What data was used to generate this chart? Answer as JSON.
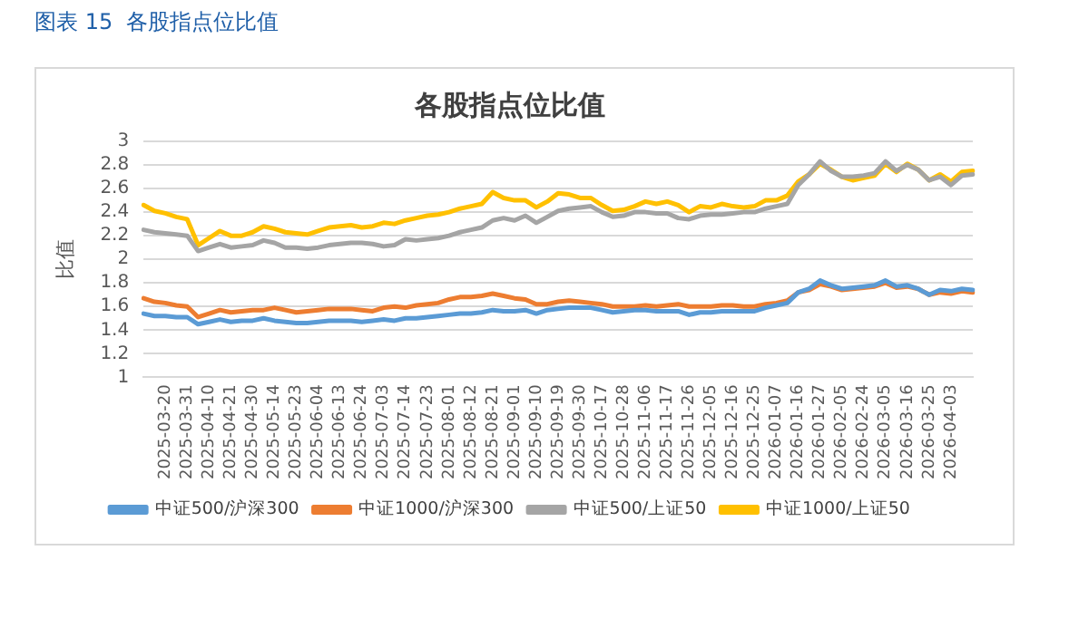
{
  "chart_data": {
    "type": "line",
    "subtitle": "图表 15  各股指点位比值",
    "title": "各股指点位比值",
    "ylabel": "比值",
    "categories": [
      null,
      null,
      "2025-03-20",
      null,
      "2025-03-31",
      null,
      "2025-04-10",
      null,
      "2025-04-21",
      null,
      "2025-04-30",
      null,
      "2025-05-14",
      null,
      "2025-05-23",
      null,
      "2025-06-04",
      null,
      "2025-06-13",
      null,
      "2025-06-24",
      null,
      "2025-07-03",
      null,
      "2025-07-14",
      null,
      "2025-07-23",
      null,
      "2025-08-01",
      null,
      "2025-08-12",
      null,
      "2025-08-21",
      null,
      "2025-09-01",
      null,
      "2025-09-10",
      null,
      "2025-09-19",
      null,
      "2025-09-30",
      null,
      "2025-10-17",
      null,
      "2025-10-28",
      null,
      "2025-11-06",
      null,
      "2025-11-17",
      null,
      "2025-11-26",
      null,
      "2025-12-05",
      null,
      "2025-12-16",
      null,
      "2025-12-25",
      null,
      "2026-01-07",
      null,
      "2026-01-16",
      null,
      "2026-01-27",
      null,
      "2026-02-05",
      null,
      "2026-02-24",
      null,
      "2026-03-05",
      null,
      "2026-03-16",
      null,
      "2026-03-25",
      null,
      "2026-04-03",
      null,
      null
    ],
    "series": [
      {
        "name": "中证500/沪深300",
        "color": "#5b9bd5",
        "values": [
          1.54,
          1.52,
          1.52,
          1.51,
          1.51,
          1.45,
          1.47,
          1.49,
          1.47,
          1.48,
          1.48,
          1.5,
          1.48,
          1.47,
          1.46,
          1.46,
          1.47,
          1.48,
          1.48,
          1.48,
          1.47,
          1.48,
          1.49,
          1.48,
          1.5,
          1.5,
          1.51,
          1.52,
          1.53,
          1.54,
          1.54,
          1.55,
          1.57,
          1.56,
          1.56,
          1.57,
          1.54,
          1.57,
          1.58,
          1.59,
          1.59,
          1.59,
          1.57,
          1.55,
          1.56,
          1.57,
          1.57,
          1.56,
          1.56,
          1.56,
          1.53,
          1.55,
          1.55,
          1.56,
          1.56,
          1.56,
          1.56,
          1.59,
          1.61,
          1.63,
          1.72,
          1.75,
          1.82,
          1.78,
          1.75,
          1.76,
          1.77,
          1.78,
          1.82,
          1.77,
          1.78,
          1.75,
          1.7,
          1.74,
          1.73,
          1.75,
          1.74
        ]
      },
      {
        "name": "中证1000/沪深300",
        "color": "#ed7d31",
        "values": [
          1.67,
          1.64,
          1.63,
          1.61,
          1.6,
          1.51,
          1.54,
          1.57,
          1.55,
          1.56,
          1.57,
          1.57,
          1.59,
          1.57,
          1.55,
          1.56,
          1.57,
          1.58,
          1.58,
          1.58,
          1.57,
          1.56,
          1.59,
          1.6,
          1.59,
          1.61,
          1.62,
          1.63,
          1.66,
          1.68,
          1.68,
          1.69,
          1.71,
          1.69,
          1.67,
          1.66,
          1.62,
          1.62,
          1.64,
          1.65,
          1.64,
          1.63,
          1.62,
          1.6,
          1.6,
          1.6,
          1.61,
          1.6,
          1.61,
          1.62,
          1.6,
          1.6,
          1.6,
          1.61,
          1.61,
          1.6,
          1.6,
          1.62,
          1.63,
          1.65,
          1.72,
          1.74,
          1.79,
          1.77,
          1.74,
          1.75,
          1.76,
          1.77,
          1.8,
          1.76,
          1.77,
          1.75,
          1.7,
          1.72,
          1.71,
          1.73,
          1.72
        ]
      },
      {
        "name": "中证500/上证50",
        "color": "#a5a5a5",
        "values": [
          2.25,
          2.23,
          2.22,
          2.21,
          2.2,
          2.07,
          2.1,
          2.13,
          2.1,
          2.11,
          2.12,
          2.16,
          2.14,
          2.1,
          2.1,
          2.09,
          2.1,
          2.12,
          2.13,
          2.14,
          2.14,
          2.13,
          2.11,
          2.12,
          2.17,
          2.16,
          2.17,
          2.18,
          2.2,
          2.23,
          2.25,
          2.27,
          2.33,
          2.35,
          2.33,
          2.37,
          2.31,
          2.36,
          2.41,
          2.43,
          2.44,
          2.45,
          2.4,
          2.36,
          2.37,
          2.4,
          2.4,
          2.39,
          2.39,
          2.35,
          2.34,
          2.37,
          2.38,
          2.38,
          2.39,
          2.4,
          2.4,
          2.43,
          2.45,
          2.47,
          2.63,
          2.72,
          2.83,
          2.75,
          2.7,
          2.7,
          2.71,
          2.73,
          2.83,
          2.75,
          2.8,
          2.76,
          2.67,
          2.7,
          2.63,
          2.71,
          2.72
        ]
      },
      {
        "name": "中证1000/上证50",
        "color": "#ffc000",
        "values": [
          2.46,
          2.41,
          2.39,
          2.36,
          2.34,
          2.12,
          2.18,
          2.24,
          2.2,
          2.2,
          2.23,
          2.28,
          2.26,
          2.23,
          2.22,
          2.21,
          2.24,
          2.27,
          2.28,
          2.29,
          2.27,
          2.28,
          2.31,
          2.3,
          2.33,
          2.35,
          2.37,
          2.38,
          2.4,
          2.43,
          2.45,
          2.47,
          2.57,
          2.52,
          2.5,
          2.5,
          2.44,
          2.49,
          2.56,
          2.55,
          2.52,
          2.52,
          2.46,
          2.41,
          2.42,
          2.45,
          2.49,
          2.47,
          2.49,
          2.46,
          2.4,
          2.45,
          2.44,
          2.47,
          2.45,
          2.44,
          2.45,
          2.5,
          2.5,
          2.54,
          2.66,
          2.72,
          2.81,
          2.76,
          2.7,
          2.67,
          2.69,
          2.71,
          2.81,
          2.74,
          2.81,
          2.76,
          2.67,
          2.72,
          2.66,
          2.74,
          2.75
        ]
      }
    ],
    "ylim": [
      1,
      3
    ],
    "yticks": [
      1,
      1.2,
      1.4,
      1.6,
      1.8,
      2,
      2.2,
      2.4,
      2.6,
      2.8,
      3
    ],
    "grid": "y",
    "legend": "bottom",
    "marker": "none",
    "line_style": "solid"
  }
}
